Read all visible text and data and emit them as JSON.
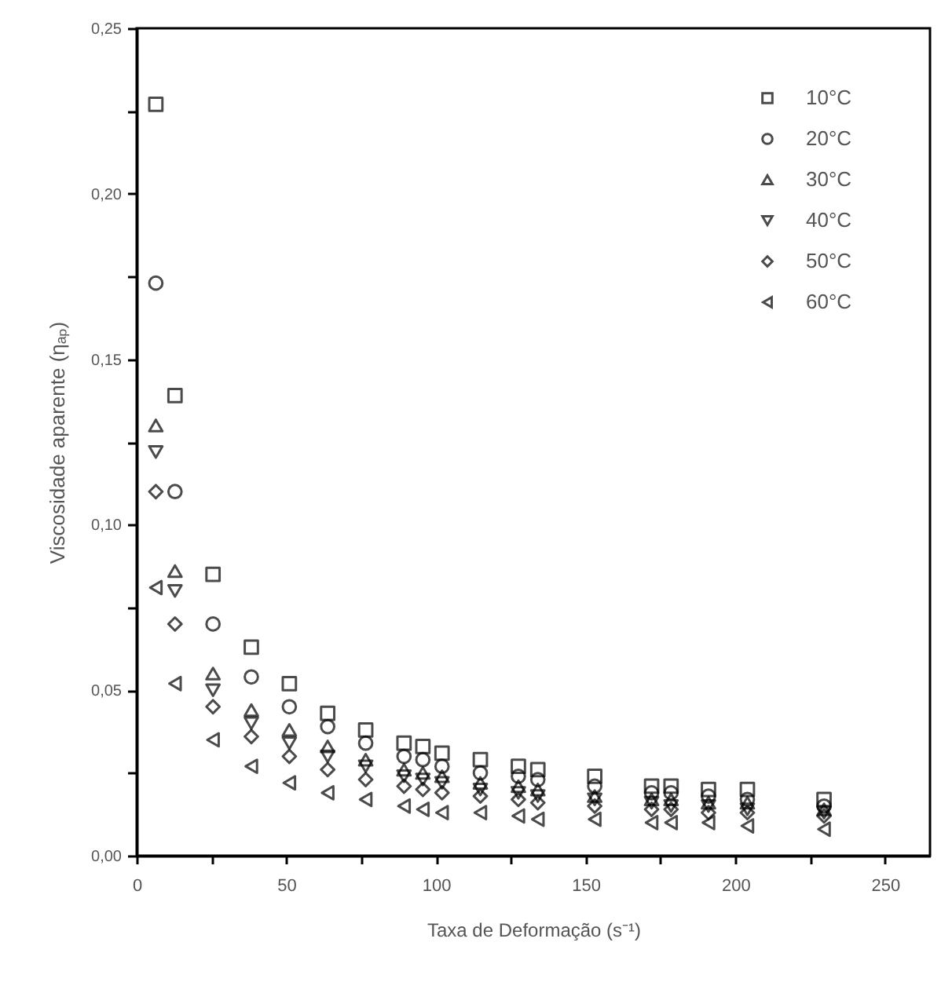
{
  "chart_data": {
    "type": "scatter",
    "xlabel": "Taxa de Deformação (s⁻¹)",
    "ylabel": "Viscosidade aparente (ηₐₚ)",
    "x": [
      6.4,
      12.8,
      25.5,
      38.3,
      51,
      63.8,
      76.5,
      89.3,
      95.6,
      102,
      114.8,
      127.5,
      134,
      153,
      172,
      178.5,
      191,
      204,
      229.6
    ],
    "series": [
      {
        "name": "10°C",
        "color": "#000000",
        "marker": "square",
        "values": [
          0.227,
          0.139,
          0.085,
          0.063,
          0.052,
          0.043,
          0.038,
          0.034,
          0.033,
          0.031,
          0.029,
          0.027,
          0.026,
          0.024,
          0.021,
          0.021,
          0.02,
          0.02,
          0.017
        ]
      },
      {
        "name": "20°C",
        "color": "#000000",
        "marker": "circle",
        "values": [
          0.173,
          0.11,
          0.07,
          0.054,
          0.045,
          0.039,
          0.034,
          0.03,
          0.029,
          0.027,
          0.025,
          0.024,
          0.023,
          0.021,
          0.019,
          0.019,
          0.018,
          0.017,
          0.015
        ]
      },
      {
        "name": "30°C",
        "color": "#000000",
        "marker": "triangle",
        "values": [
          0.13,
          0.086,
          0.055,
          0.044,
          0.038,
          0.033,
          0.029,
          0.026,
          0.025,
          0.024,
          0.022,
          0.021,
          0.02,
          0.018,
          0.017,
          0.017,
          0.016,
          0.016,
          0.014
        ]
      },
      {
        "name": "40°C",
        "color": "#000000",
        "marker": "triangle-down",
        "values": [
          0.122,
          0.08,
          0.05,
          0.04,
          0.034,
          0.03,
          0.027,
          0.024,
          0.023,
          0.022,
          0.02,
          0.019,
          0.018,
          0.017,
          0.016,
          0.015,
          0.015,
          0.014,
          0.013
        ]
      },
      {
        "name": "50°C",
        "color": "#000000",
        "marker": "diamond",
        "values": [
          0.11,
          0.07,
          0.045,
          0.036,
          0.03,
          0.026,
          0.023,
          0.021,
          0.02,
          0.019,
          0.018,
          0.017,
          0.016,
          0.015,
          0.014,
          0.014,
          0.013,
          0.013,
          0.012
        ]
      },
      {
        "name": "60°C",
        "color": "#000000",
        "marker": "triangle-left",
        "values": [
          0.081,
          0.052,
          0.035,
          0.027,
          0.022,
          0.019,
          0.017,
          0.015,
          0.014,
          0.013,
          0.013,
          0.012,
          0.011,
          0.011,
          0.01,
          0.01,
          0.01,
          0.009,
          0.008
        ]
      }
    ],
    "xlim": [
      0,
      265
    ],
    "xticks": [
      0,
      {
        "value": 25,
        "label": null
      },
      50,
      {
        "value": 75,
        "label": null
      },
      100,
      {
        "value": 125,
        "label": null
      },
      150,
      {
        "value": 175,
        "label": null
      },
      200,
      {
        "value": 225,
        "label": null
      },
      250
    ],
    "ylim": [
      0,
      0.25
    ],
    "yticks": [
      {
        "value": 0,
        "label": "0,00"
      },
      {
        "value": 0.025,
        "label": null
      },
      {
        "value": 0.05,
        "label": "0,05"
      },
      {
        "value": 0.075,
        "label": null
      },
      {
        "value": 0.1,
        "label": "0,10"
      },
      {
        "value": 0.125,
        "label": null
      },
      {
        "value": 0.15,
        "label": "0,15"
      },
      {
        "value": 0.175,
        "label": null
      },
      {
        "value": 0.2,
        "label": "0,20"
      },
      {
        "value": 0.225,
        "label": null
      },
      {
        "value": 0.25,
        "label": "0,25"
      }
    ],
    "grid": false,
    "legend": "top right"
  }
}
